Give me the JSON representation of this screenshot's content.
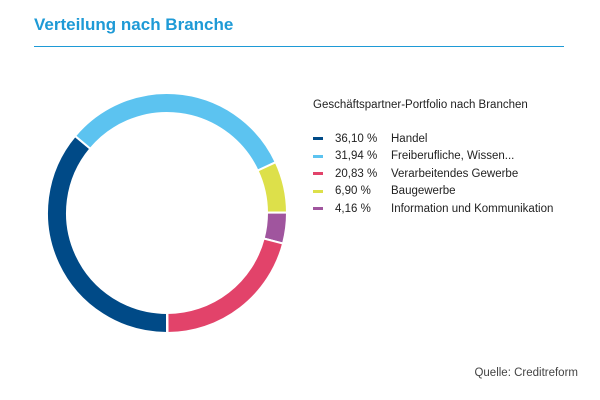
{
  "chart_data": {
    "type": "pie",
    "title": "Verteilung nach Branche",
    "legend_title": "Geschäftspartner-Portfolio nach Branchen",
    "legend_position": "right",
    "donut": true,
    "series": [
      {
        "name": "Handel",
        "label": "36,10 %",
        "value": 36.1,
        "color": "#004a87"
      },
      {
        "name": "Freiberufliche, Wissen...",
        "label": "31,94 %",
        "value": 31.94,
        "color": "#5cc3f0"
      },
      {
        "name": "Verarbeitendes Gewerbe",
        "label": "20,83 %",
        "value": 20.83,
        "color": "#e2436a"
      },
      {
        "name": "Baugewerbe",
        "label": "6,90 %",
        "value": 6.9,
        "color": "#dde04a"
      },
      {
        "name": "Information und Kommunikation",
        "label": "4,16 %",
        "value": 4.16,
        "color": "#a0559e"
      }
    ],
    "draw_order_clockwise_from_bottom": [
      "Handel",
      "Freiberufliche, Wissen...",
      "Baugewerbe",
      "Information und Kommunikation",
      "Verarbeitendes Gewerbe"
    ]
  },
  "source": "Quelle: Creditreform"
}
